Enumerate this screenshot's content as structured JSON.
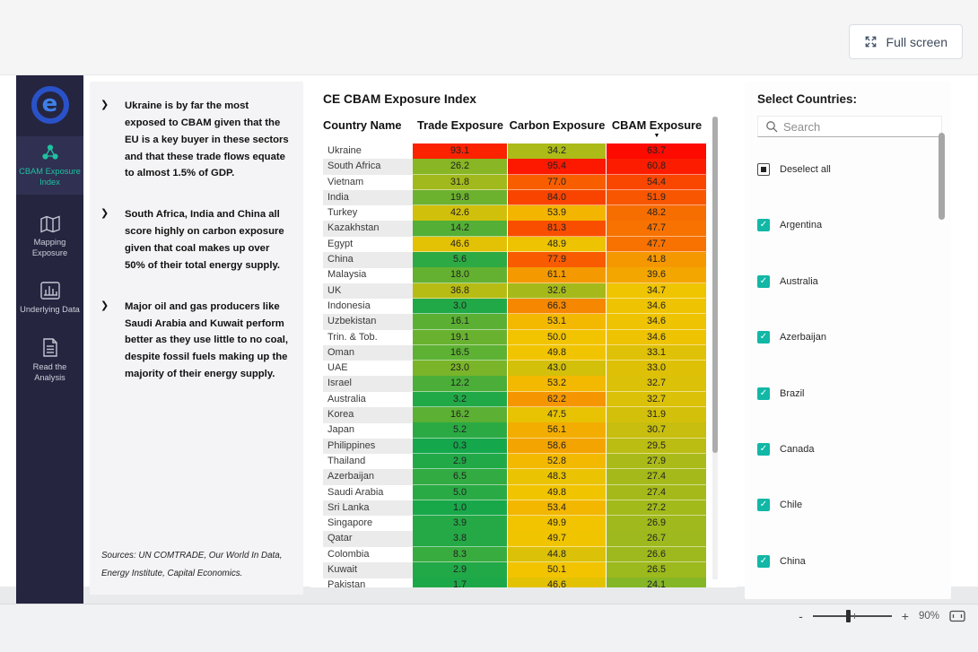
{
  "topbar": {
    "full_screen_label": "Full screen"
  },
  "sidebar": {
    "logo_letter": "e",
    "items": [
      {
        "label": "CBAM Exposure Index",
        "active": true
      },
      {
        "label": "Mapping Exposure",
        "active": false
      },
      {
        "label": "Underlying Data",
        "active": false
      },
      {
        "label": "Read the Analysis",
        "active": false
      }
    ]
  },
  "insights": {
    "bullet_glyph": "❯",
    "bullets": [
      "Ukraine is by far the most exposed to CBAM given that the EU is a key buyer in these sectors and that these trade flows equate to almost 1.5% of GDP.",
      "South Africa, India and China all score highly on carbon exposure given that coal makes up over 50% of their total energy supply.",
      "Major oil and gas producers like Saudi Arabia and Kuwait perform better as they use little to no coal, despite fossil fuels making up the majority of their energy supply."
    ],
    "sources_line1": "Sources: UN COMTRADE, Our World In Data,",
    "sources_line2": "Energy Institute, Capital Economics."
  },
  "chart_data": {
    "type": "heatmap",
    "title": "CE CBAM Exposure Index",
    "columns": [
      "Country Name",
      "Trade Exposure",
      "Carbon Exposure",
      "CBAM Exposure"
    ],
    "sort": {
      "column": "CBAM Exposure",
      "direction": "desc",
      "arrow_glyph": "▼"
    },
    "color_scale": {
      "low": "#14A74C",
      "mid": "#F2C400",
      "high": "#FD0800",
      "trade_range": [
        0,
        50,
        100
      ],
      "carbon_range": [
        0,
        50,
        100
      ],
      "cbam_range": [
        13,
        35,
        64
      ]
    },
    "rows": [
      [
        "Ukraine",
        "93.1",
        "34.2",
        "63.7"
      ],
      [
        "South Africa",
        "26.2",
        "95.4",
        "60.8"
      ],
      [
        "Vietnam",
        "31.8",
        "77.0",
        "54.4"
      ],
      [
        "India",
        "19.8",
        "84.0",
        "51.9"
      ],
      [
        "Turkey",
        "42.6",
        "53.9",
        "48.2"
      ],
      [
        "Kazakhstan",
        "14.2",
        "81.3",
        "47.7"
      ],
      [
        "Egypt",
        "46.6",
        "48.9",
        "47.7"
      ],
      [
        "China",
        "5.6",
        "77.9",
        "41.8"
      ],
      [
        "Malaysia",
        "18.0",
        "61.1",
        "39.6"
      ],
      [
        "UK",
        "36.8",
        "32.6",
        "34.7"
      ],
      [
        "Indonesia",
        "3.0",
        "66.3",
        "34.6"
      ],
      [
        "Uzbekistan",
        "16.1",
        "53.1",
        "34.6"
      ],
      [
        "Trin. & Tob.",
        "19.1",
        "50.0",
        "34.6"
      ],
      [
        "Oman",
        "16.5",
        "49.8",
        "33.1"
      ],
      [
        "UAE",
        "23.0",
        "43.0",
        "33.0"
      ],
      [
        "Israel",
        "12.2",
        "53.2",
        "32.7"
      ],
      [
        "Australia",
        "3.2",
        "62.2",
        "32.7"
      ],
      [
        "Korea",
        "16.2",
        "47.5",
        "31.9"
      ],
      [
        "Japan",
        "5.2",
        "56.1",
        "30.7"
      ],
      [
        "Philippines",
        "0.3",
        "58.6",
        "29.5"
      ],
      [
        "Thailand",
        "2.9",
        "52.8",
        "27.9"
      ],
      [
        "Azerbaijan",
        "6.5",
        "48.3",
        "27.4"
      ],
      [
        "Saudi Arabia",
        "5.0",
        "49.8",
        "27.4"
      ],
      [
        "Sri Lanka",
        "1.0",
        "53.4",
        "27.2"
      ],
      [
        "Singapore",
        "3.9",
        "49.9",
        "26.9"
      ],
      [
        "Qatar",
        "3.8",
        "49.7",
        "26.7"
      ],
      [
        "Colombia",
        "8.3",
        "44.8",
        "26.6"
      ],
      [
        "Kuwait",
        "2.9",
        "50.1",
        "26.5"
      ],
      [
        "Pakistan",
        "1.7",
        "46.6",
        "24.1"
      ]
    ]
  },
  "filter": {
    "title": "Select Countries:",
    "search_placeholder": "Search",
    "items": [
      {
        "label": "Deselect all",
        "state": "indeterminate"
      },
      {
        "label": "Argentina",
        "state": "checked"
      },
      {
        "label": "Australia",
        "state": "checked"
      },
      {
        "label": "Azerbaijan",
        "state": "checked"
      },
      {
        "label": "Brazil",
        "state": "checked"
      },
      {
        "label": "Canada",
        "state": "checked"
      },
      {
        "label": "Chile",
        "state": "checked"
      },
      {
        "label": "China",
        "state": "checked"
      }
    ],
    "accent_color": "#12B7A6"
  },
  "zoombar": {
    "minus": "-",
    "plus": "+",
    "level": "90%"
  },
  "colors": {
    "sidebar_bg": "#252540",
    "sidebar_active_bg": "#303052",
    "sidebar_accent": "#1EC2A0",
    "logo_blue": "#2A52C8"
  }
}
